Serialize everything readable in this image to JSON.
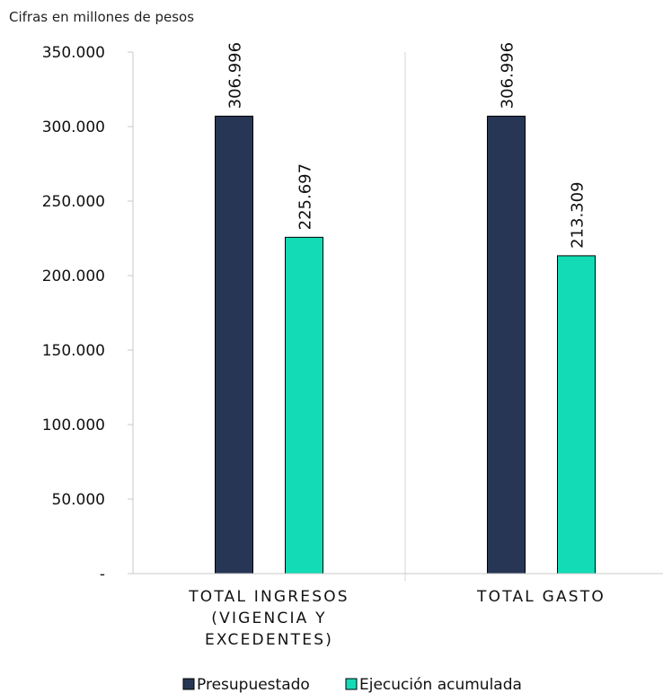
{
  "chart_data": {
    "type": "bar",
    "unit_label": "Cifras en millones de pesos",
    "categories": [
      {
        "lines": [
          "TOTAL INGRESOS",
          "(VIGENCIA Y",
          "EXCEDENTES)"
        ]
      },
      {
        "lines": [
          "TOTAL GASTO"
        ]
      }
    ],
    "series": [
      {
        "name": "Presupuestado",
        "color": "#283655",
        "values": [
          306996,
          306996
        ],
        "labels": [
          "306.996",
          "306.996"
        ]
      },
      {
        "name": "Ejecución acumulada",
        "color": "#12dbb5",
        "values": [
          225697,
          213309
        ],
        "labels": [
          "225.697",
          "213.309"
        ]
      }
    ],
    "ylim": [
      0,
      350000
    ],
    "yticks": [
      {
        "value": 0,
        "label": "-"
      },
      {
        "value": 50000,
        "label": "50.000"
      },
      {
        "value": 100000,
        "label": "100.000"
      },
      {
        "value": 150000,
        "label": "150.000"
      },
      {
        "value": 200000,
        "label": "200.000"
      },
      {
        "value": 250000,
        "label": "250.000"
      },
      {
        "value": 300000,
        "label": "300.000"
      },
      {
        "value": 350000,
        "label": "350.000"
      }
    ],
    "legend_position": "bottom",
    "grid": false
  }
}
